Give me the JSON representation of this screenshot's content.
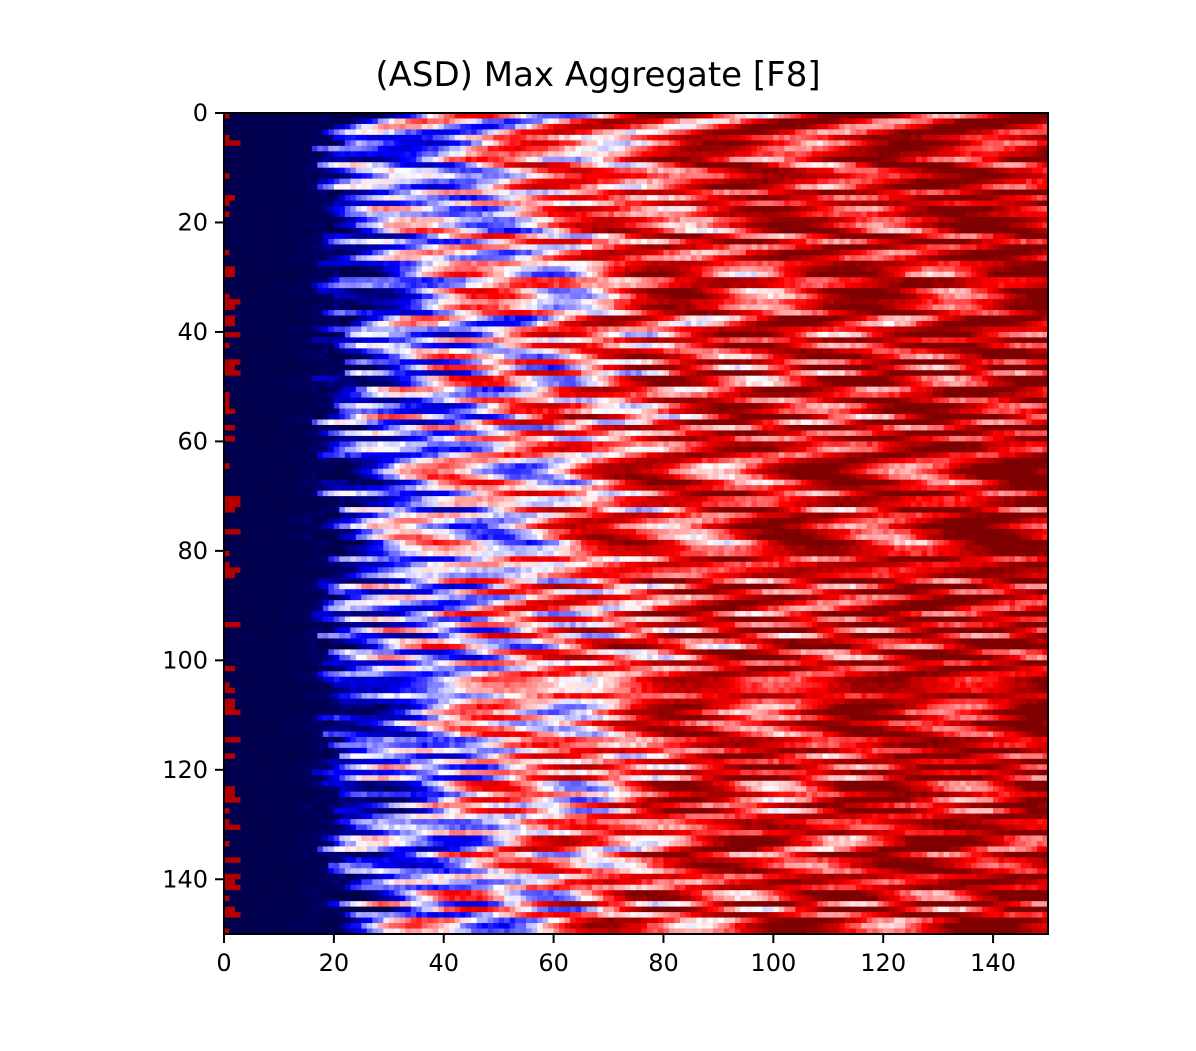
{
  "chart_data": {
    "type": "heatmap",
    "title": "(ASD) Max Aggregate [F8]",
    "xlabel": "",
    "ylabel": "",
    "xlim": [
      0,
      150
    ],
    "ylim": [
      150,
      0
    ],
    "x_ticks": [
      0,
      20,
      40,
      60,
      80,
      100,
      120,
      140
    ],
    "y_ticks": [
      0,
      20,
      40,
      60,
      80,
      100,
      120,
      140
    ],
    "x_tick_labels": [
      "0",
      "20",
      "40",
      "60",
      "80",
      "100",
      "120",
      "140"
    ],
    "y_tick_labels": [
      "0",
      "20",
      "40",
      "60",
      "80",
      "100",
      "120",
      "140"
    ],
    "grid": false,
    "legend": "none",
    "colormap": "seismic",
    "colormap_colors": [
      "#00004c",
      "#0000ff",
      "#ffffff",
      "#ff0000",
      "#7f0000"
    ],
    "value_range": [
      -1,
      1
    ],
    "column_trend": {
      "x": [
        0,
        10,
        18,
        22,
        30,
        40,
        50,
        60,
        70,
        80,
        100,
        120,
        140,
        150
      ],
      "value": [
        -1.0,
        -1.0,
        -0.95,
        -0.6,
        -0.3,
        -0.1,
        0.05,
        0.2,
        0.35,
        0.5,
        0.6,
        0.65,
        0.75,
        0.8
      ]
    },
    "dimensions": [
      150,
      150
    ]
  }
}
